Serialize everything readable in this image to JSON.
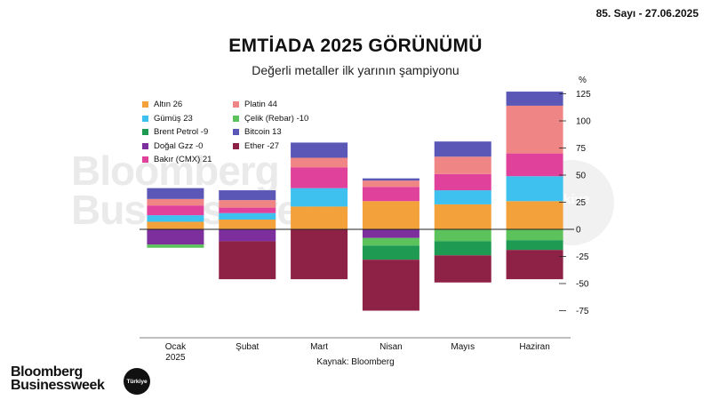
{
  "issue": "85. Sayı - 27.06.2025",
  "source": "Kaynak: Bloomberg",
  "logo": {
    "line1": "Bloomberg",
    "line2": "Businessweek",
    "badge": "Türkiye"
  },
  "chart_data": {
    "type": "stacked-bar",
    "title": "EMTİADA 2025 GÖRÜNÜMÜ",
    "subtitle": "Değerli metaller ilk yarının şampiyonu",
    "unit": "%",
    "ylim": [
      -75,
      125
    ],
    "yticks": [
      125,
      100,
      75,
      50,
      25,
      0,
      -25,
      -50,
      -75
    ],
    "ytick_labels": [
      "125",
      "100",
      "75",
      "50",
      "25",
      "0",
      "-25",
      "-50",
      "-75"
    ],
    "categories": [
      "Ocak\n2025",
      "Şubat",
      "Mart",
      "Nisan",
      "Mayıs",
      "Haziran"
    ],
    "grid": false,
    "legend_position": "top-left",
    "legend": [
      {
        "label": "Altın 26",
        "color": "#f3a13a"
      },
      {
        "label": "Platin 44",
        "color": "#f08585"
      },
      {
        "label": "Gümüş 23",
        "color": "#3fc1ef"
      },
      {
        "label": "Çelik (Rebar) -10",
        "color": "#5cc35c"
      },
      {
        "label": "Brent Petrol -9",
        "color": "#1f9a52"
      },
      {
        "label": "Bitcoin 13",
        "color": "#5a57b6"
      },
      {
        "label": "Doğal Gzz -0",
        "color": "#7e2f9e"
      },
      {
        "label": "Ether -27",
        "color": "#8e2246"
      },
      {
        "label": "Bakır (CMX) 21",
        "color": "#e0419b"
      }
    ],
    "series": [
      {
        "name": "Altın 26",
        "color": "#f3a13a",
        "values": [
          7,
          9,
          21,
          26,
          23,
          26
        ]
      },
      {
        "name": "Gümüş 23",
        "color": "#3fc1ef",
        "values": [
          6,
          6,
          17,
          0,
          13,
          23
        ]
      },
      {
        "name": "Bakır (CMX) 21",
        "color": "#e0419b",
        "values": [
          9,
          5,
          19,
          13,
          15,
          21
        ]
      },
      {
        "name": "Platin 44",
        "color": "#f08585",
        "values": [
          6,
          7,
          9,
          6,
          16,
          44
        ]
      },
      {
        "name": "Bitcoin 13",
        "color": "#5a57b6",
        "values": [
          10,
          9,
          14,
          2,
          14,
          13
        ]
      },
      {
        "name": "Doğal Gzz -0",
        "color": "#7e2f9e",
        "values": [
          -14,
          -11,
          0,
          -8,
          0,
          0
        ]
      },
      {
        "name": "Çelik (Rebar) -10",
        "color": "#5cc35c",
        "values": [
          -3,
          0,
          0,
          -7,
          -11,
          -10
        ]
      },
      {
        "name": "Brent Petrol -9",
        "color": "#1f9a52",
        "values": [
          0,
          0,
          0,
          -13,
          -13,
          -9
        ]
      },
      {
        "name": "Ether -27",
        "color": "#8e2246",
        "values": [
          0,
          -35,
          -46,
          -47,
          -25,
          -27
        ]
      }
    ]
  }
}
